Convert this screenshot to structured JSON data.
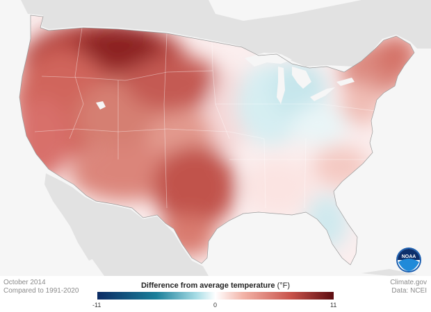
{
  "map": {
    "title": "Difference from average temperature",
    "unit": "(°F)",
    "period": "October 2014",
    "baseline": "Compared to 1991-2020",
    "credit": "Climate.gov",
    "source": "Data: NCEI",
    "legend": {
      "min_label": "-11",
      "mid_label": "0",
      "max_label": "11",
      "scale": [
        -11,
        0,
        11
      ],
      "colors": [
        "#0b2b63",
        "#1a7f9a",
        "#a8dde6",
        "#ffffff",
        "#f2b2a6",
        "#c8524a",
        "#5c0c10"
      ]
    },
    "logo": "NOAA"
  }
}
